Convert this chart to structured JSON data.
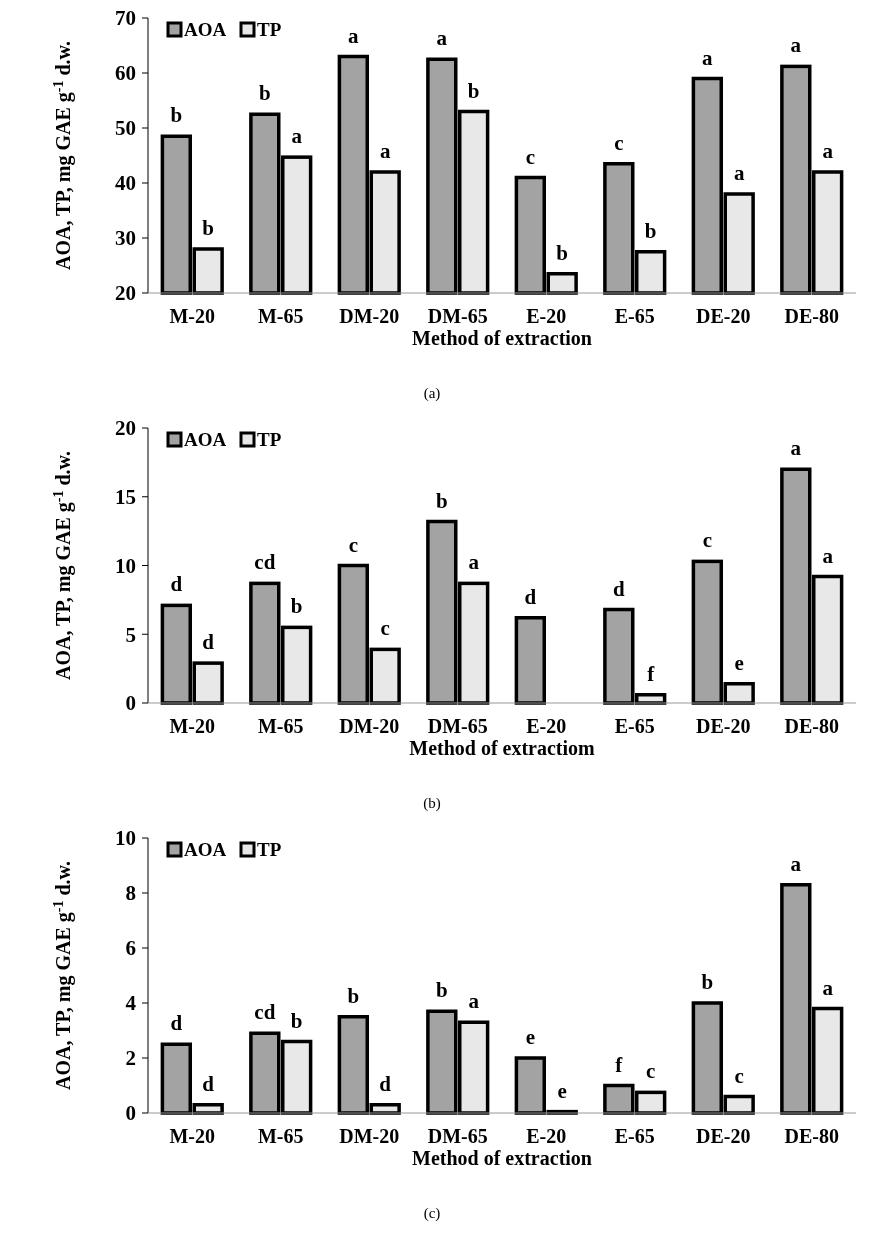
{
  "chart_data": [
    {
      "type": "bar",
      "categories": [
        "M-20",
        "M-65",
        "DM-20",
        "DM-65",
        "E-20",
        "E-65",
        "DE-20",
        "DE-80"
      ],
      "xlabel": "Method of extraction",
      "ylabel": "AOA, TP, mg GAE g$^{-1}$ d.w.",
      "ylim": [
        20,
        70
      ],
      "yticks": [
        20,
        30,
        40,
        50,
        60,
        70
      ],
      "legend": "top left",
      "grid": false,
      "series": [
        {
          "name": "AOA",
          "color": "#a3a3a3",
          "values": [
            48.5,
            52.5,
            63,
            62.5,
            41,
            43.5,
            59,
            61.2
          ]
        },
        {
          "name": "TP",
          "color": "#e8e8e8",
          "values": [
            28,
            44.7,
            42,
            53,
            23.5,
            27.5,
            38,
            42
          ]
        }
      ],
      "annotations": [
        {
          "text": "b",
          "x": "M-20",
          "y": 48.5
        },
        {
          "text": "b",
          "x": "M-20",
          "y": 28
        },
        {
          "text": "b",
          "x": "M-65",
          "y": 52.5
        },
        {
          "text": "a",
          "x": "M-65",
          "y": 44.7
        },
        {
          "text": "a",
          "x": "DM-20",
          "y": 63
        },
        {
          "text": "a",
          "x": "DM-20",
          "y": 42
        },
        {
          "text": "a",
          "x": "DM-65",
          "y": 62.5
        },
        {
          "text": "b",
          "x": "DM-65",
          "y": 53
        },
        {
          "text": "c",
          "x": "E-20",
          "y": 41
        },
        {
          "text": "b",
          "x": "E-20",
          "y": 23.5
        },
        {
          "text": "c",
          "x": "E-65",
          "y": 43.5
        },
        {
          "text": "b",
          "x": "E-65",
          "y": 27.5
        },
        {
          "text": "a",
          "x": "DE-20",
          "y": 59
        },
        {
          "text": "a",
          "x": "DE-20",
          "y": 38
        },
        {
          "text": "a",
          "x": "DE-80",
          "y": 61.2
        },
        {
          "text": "a",
          "x": "DE-80",
          "y": 42
        },
        "(a)"
      ]
    },
    {
      "type": "bar",
      "categories": [
        "M-20",
        "M-65",
        "DM-20",
        "DM-65",
        "E-20",
        "E-65",
        "DE-20",
        "DE-80"
      ],
      "xlabel": "Method of extractiom",
      "ylabel": "AOA, TP, mg GAE g$^{-1}$ d.w.",
      "ylim": [
        0,
        20
      ],
      "yticks": [
        0,
        5,
        10,
        15,
        20
      ],
      "legend": "top left",
      "grid": false,
      "series": [
        {
          "name": "AOA",
          "color": "#a3a3a3",
          "values": [
            7.1,
            8.7,
            10,
            13.2,
            6.2,
            6.8,
            10.3,
            17
          ]
        },
        {
          "name": "TP",
          "color": "#e8e8e8",
          "values": [
            2.9,
            5.5,
            3.9,
            8.7,
            null,
            0.6,
            1.4,
            9.2
          ]
        }
      ],
      "annotations": [
        {
          "text": "d",
          "x": "M-20",
          "y": 7.1
        },
        {
          "text": "d",
          "x": "M-20",
          "y": 2.9
        },
        {
          "text": "cd",
          "x": "M-65",
          "y": 8.7
        },
        {
          "text": "b",
          "x": "M-65",
          "y": 5.5
        },
        {
          "text": "c",
          "x": "DM-20",
          "y": 10
        },
        {
          "text": "c",
          "x": "DM-20",
          "y": 3.9
        },
        {
          "text": "b",
          "x": "DM-65",
          "y": 13.2
        },
        {
          "text": "a",
          "x": "DM-65",
          "y": 8.7
        },
        {
          "text": "d",
          "x": "E-20",
          "y": 6.2
        },
        {
          "text": "d",
          "x": "E-65",
          "y": 6.8
        },
        {
          "text": "f",
          "x": "E-65",
          "y": 0.6
        },
        {
          "text": "c",
          "x": "DE-20",
          "y": 10.3
        },
        {
          "text": "e",
          "x": "DE-20",
          "y": 1.4
        },
        {
          "text": "a",
          "x": "DE-80",
          "y": 17
        },
        {
          "text": "a",
          "x": "DE-80",
          "y": 9.2
        },
        "(b)"
      ]
    },
    {
      "type": "bar",
      "categories": [
        "M-20",
        "M-65",
        "DM-20",
        "DM-65",
        "E-20",
        "E-65",
        "DE-20",
        "DE-80"
      ],
      "xlabel": "Method of extraction",
      "ylabel": "AOA, TP, mg GAE g$^{-1}$ d.w.",
      "ylim": [
        0,
        10
      ],
      "yticks": [
        0,
        2,
        4,
        6,
        8,
        10
      ],
      "legend": "top left",
      "grid": false,
      "series": [
        {
          "name": "AOA",
          "color": "#a3a3a3",
          "values": [
            2.5,
            2.9,
            3.5,
            3.7,
            2.0,
            1.0,
            4.0,
            8.3
          ]
        },
        {
          "name": "TP",
          "color": "#e8e8e8",
          "values": [
            0.3,
            2.6,
            0.3,
            3.3,
            0.05,
            0.75,
            0.6,
            3.8
          ]
        }
      ],
      "annotations": [
        {
          "text": "d",
          "x": "M-20",
          "y": 2.5
        },
        {
          "text": "d",
          "x": "M-20",
          "y": 0.3
        },
        {
          "text": "cd",
          "x": "M-65",
          "y": 2.9
        },
        {
          "text": "b",
          "x": "M-65",
          "y": 2.6
        },
        {
          "text": "b",
          "x": "DM-20",
          "y": 3.5
        },
        {
          "text": "d",
          "x": "DM-20",
          "y": 0.3
        },
        {
          "text": "b",
          "x": "DM-65",
          "y": 3.7
        },
        {
          "text": "a",
          "x": "DM-65",
          "y": 3.3
        },
        {
          "text": "e",
          "x": "E-20",
          "y": 2.0
        },
        {
          "text": "e",
          "x": "E-20",
          "y": 0.05
        },
        {
          "text": "f",
          "x": "E-65",
          "y": 1.0
        },
        {
          "text": "c",
          "x": "E-65",
          "y": 0.75
        },
        {
          "text": "b",
          "x": "DE-20",
          "y": 4.0
        },
        {
          "text": "c",
          "x": "DE-20",
          "y": 0.6
        },
        {
          "text": "a",
          "x": "DE-80",
          "y": 8.3
        },
        {
          "text": "a",
          "x": "DE-80",
          "y": 3.8
        },
        "(c)"
      ]
    }
  ]
}
